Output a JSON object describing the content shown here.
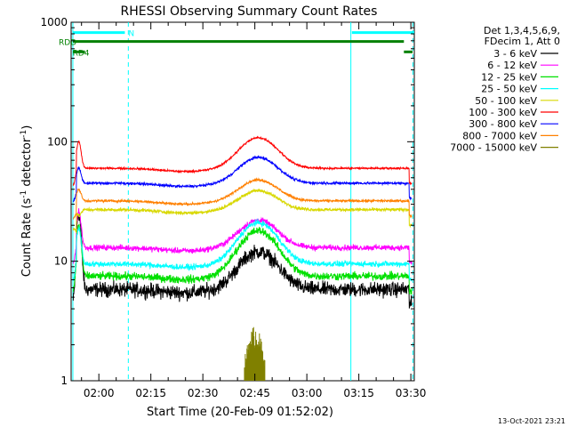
{
  "chart_data": {
    "type": "line",
    "title": "RHESSI Observing Summary Count Rates",
    "xlabel": "Start Time (20-Feb-09 01:52:02)",
    "ylabel_main": "Count Rate (s",
    "ylabel_sup1": "-1",
    "ylabel_mid": " detector",
    "ylabel_sup2": "-1",
    "ylabel_end": ")",
    "yscale": "log",
    "ylim": [
      1,
      1000
    ],
    "xlim_min": [
      112,
      211
    ],
    "yticks": [
      {
        "value": 1,
        "label": "1"
      },
      {
        "value": 10,
        "label": "10"
      },
      {
        "value": 100,
        "label": "100"
      },
      {
        "value": 1000,
        "label": "1000"
      }
    ],
    "xticks": [
      {
        "value": 120,
        "label": "02:00"
      },
      {
        "value": 135,
        "label": "02:15"
      },
      {
        "value": 150,
        "label": "02:30"
      },
      {
        "value": 165,
        "label": "02:45"
      },
      {
        "value": 180,
        "label": "03:00"
      },
      {
        "value": 195,
        "label": "03:15"
      },
      {
        "value": 210,
        "label": "03:30"
      }
    ],
    "legend": {
      "header": [
        "Det 1,3,4,5,6,9,",
        "FDecim 1, Att 0"
      ],
      "entries": [
        {
          "label": "3 - 6 keV",
          "color": "#000000"
        },
        {
          "label": "6 - 12 keV",
          "color": "#ff00ff"
        },
        {
          "label": "12 - 25 keV",
          "color": "#00e000"
        },
        {
          "label": "25 - 50 keV",
          "color": "#00ffff"
        },
        {
          "label": "50 - 100 keV",
          "color": "#d8d800"
        },
        {
          "label": "100 - 300 keV",
          "color": "#ff0000"
        },
        {
          "label": "300 - 800 keV",
          "color": "#0000ff"
        },
        {
          "label": "800 - 7000 keV",
          "color": "#ff8000"
        },
        {
          "label": "7000 - 15000 keV",
          "color": "#808000"
        }
      ]
    },
    "series": [
      {
        "name": "3 - 6 keV",
        "color": "#000000",
        "base": 5.8,
        "peak": 12,
        "noise": 0.09,
        "spike": 25
      },
      {
        "name": "6 - 12 keV",
        "color": "#ff00ff",
        "base": 13,
        "peak": 22,
        "noise": 0.035,
        "spike": 26
      },
      {
        "name": "12 - 25 keV",
        "color": "#00e000",
        "base": 7.5,
        "peak": 18,
        "noise": 0.05,
        "spike": 20
      },
      {
        "name": "25 - 50 keV",
        "color": "#00ffff",
        "base": 9.5,
        "peak": 21,
        "noise": 0.035,
        "spike": 19
      },
      {
        "name": "50 - 100 keV",
        "color": "#d8d800",
        "base": 27,
        "peak": 39,
        "noise": 0.02,
        "spike": 24
      },
      {
        "name": "100 - 300 keV",
        "color": "#ff0000",
        "base": 60,
        "peak": 108,
        "noise": 0.012,
        "spike": 100
      },
      {
        "name": "300 - 800 keV",
        "color": "#0000ff",
        "base": 45,
        "peak": 74,
        "noise": 0.015,
        "spike": 60
      },
      {
        "name": "800 - 7000 keV",
        "color": "#ff8000",
        "base": 32,
        "peak": 48,
        "noise": 0.015,
        "spike": 40
      }
    ],
    "burst_series": {
      "name": "7000 - 15000 keV",
      "color": "#808000",
      "start": 162,
      "end": 168,
      "max": 2.9
    },
    "status_bars": [
      {
        "name": "N",
        "color": "#00ffff",
        "value": 820,
        "segments": [
          [
            112.5,
            127.5
          ],
          [
            193,
            211
          ]
        ]
      },
      {
        "name": "RDD",
        "color": "#008000",
        "value": 690,
        "segments": [
          [
            112.5,
            208
          ]
        ]
      },
      {
        "name": "RD4",
        "color": "#008000",
        "value": 565,
        "segments": [
          [
            112.5,
            116
          ],
          [
            208,
            210.5
          ]
        ]
      }
    ],
    "vlines": [
      {
        "time": 112.5,
        "style": "solid",
        "color": "#00ffff"
      },
      {
        "time": 128.5,
        "style": "dashed",
        "color": "#00ffff"
      },
      {
        "time": 192.7,
        "style": "solid",
        "color": "#00ffff"
      },
      {
        "time": 210.6,
        "style": "dashed",
        "color": "#00ffff"
      }
    ],
    "flare_center": 166,
    "flare_width": 7.2
  },
  "timestamp": "13-Oct-2021 23:21"
}
